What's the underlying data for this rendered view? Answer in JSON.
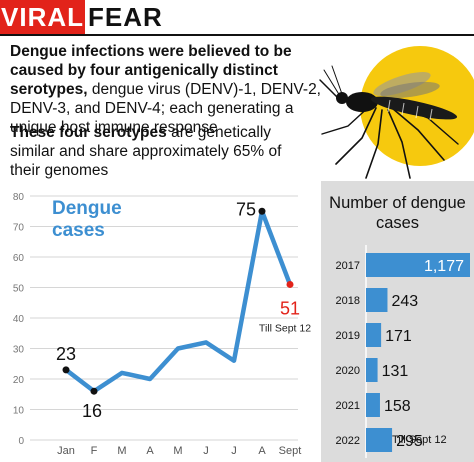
{
  "header": {
    "title_red": "VIRAL",
    "title_black": "FEAR"
  },
  "intro": {
    "p1_bold": "Dengue infections were believed to be caused by four antigenically distinct serotypes,",
    "p1_rest": " dengue virus (DENV)-1, DENV-2, DENV-3, and DENV-4; each generating a unique host immune response",
    "p2_bold": "These four serotypes",
    "p2_rest": " are genetically similar and share approximately 65% of their genomes"
  },
  "colors": {
    "accent_red": "#e2231a",
    "line_blue": "#3d8fd1",
    "bar_blue": "#3d8fd1",
    "sun_yellow": "#f6c90e",
    "panel_gray": "#dcdcdc"
  },
  "icons": {
    "illustration": "mosquito-icon",
    "sun": "sun-icon"
  },
  "chart_data": [
    {
      "type": "line",
      "title": "Dengue cases",
      "categories": [
        "Jan",
        "F",
        "M",
        "A",
        "M",
        "J",
        "J",
        "A",
        "Sept"
      ],
      "values": [
        23,
        16,
        22,
        20,
        30,
        32,
        26,
        75,
        51
      ],
      "labeled_points": {
        "0": "23",
        "1": "16",
        "7": "75",
        "8": "51"
      },
      "note": "Till Sept 12",
      "ylim": [
        0,
        80
      ],
      "yticks": [
        0,
        10,
        20,
        30,
        40,
        50,
        60,
        70,
        80
      ],
      "grid": true
    },
    {
      "type": "bar",
      "orientation": "horizontal",
      "title": "Number of dengue cases",
      "categories": [
        "2017",
        "2018",
        "2019",
        "2020",
        "2021",
        "2022"
      ],
      "values": [
        1177,
        243,
        171,
        131,
        158,
        295
      ],
      "value_labels": [
        "1,177",
        "243",
        "171",
        "131",
        "158",
        "295"
      ],
      "note": "Till Sept 12"
    }
  ]
}
